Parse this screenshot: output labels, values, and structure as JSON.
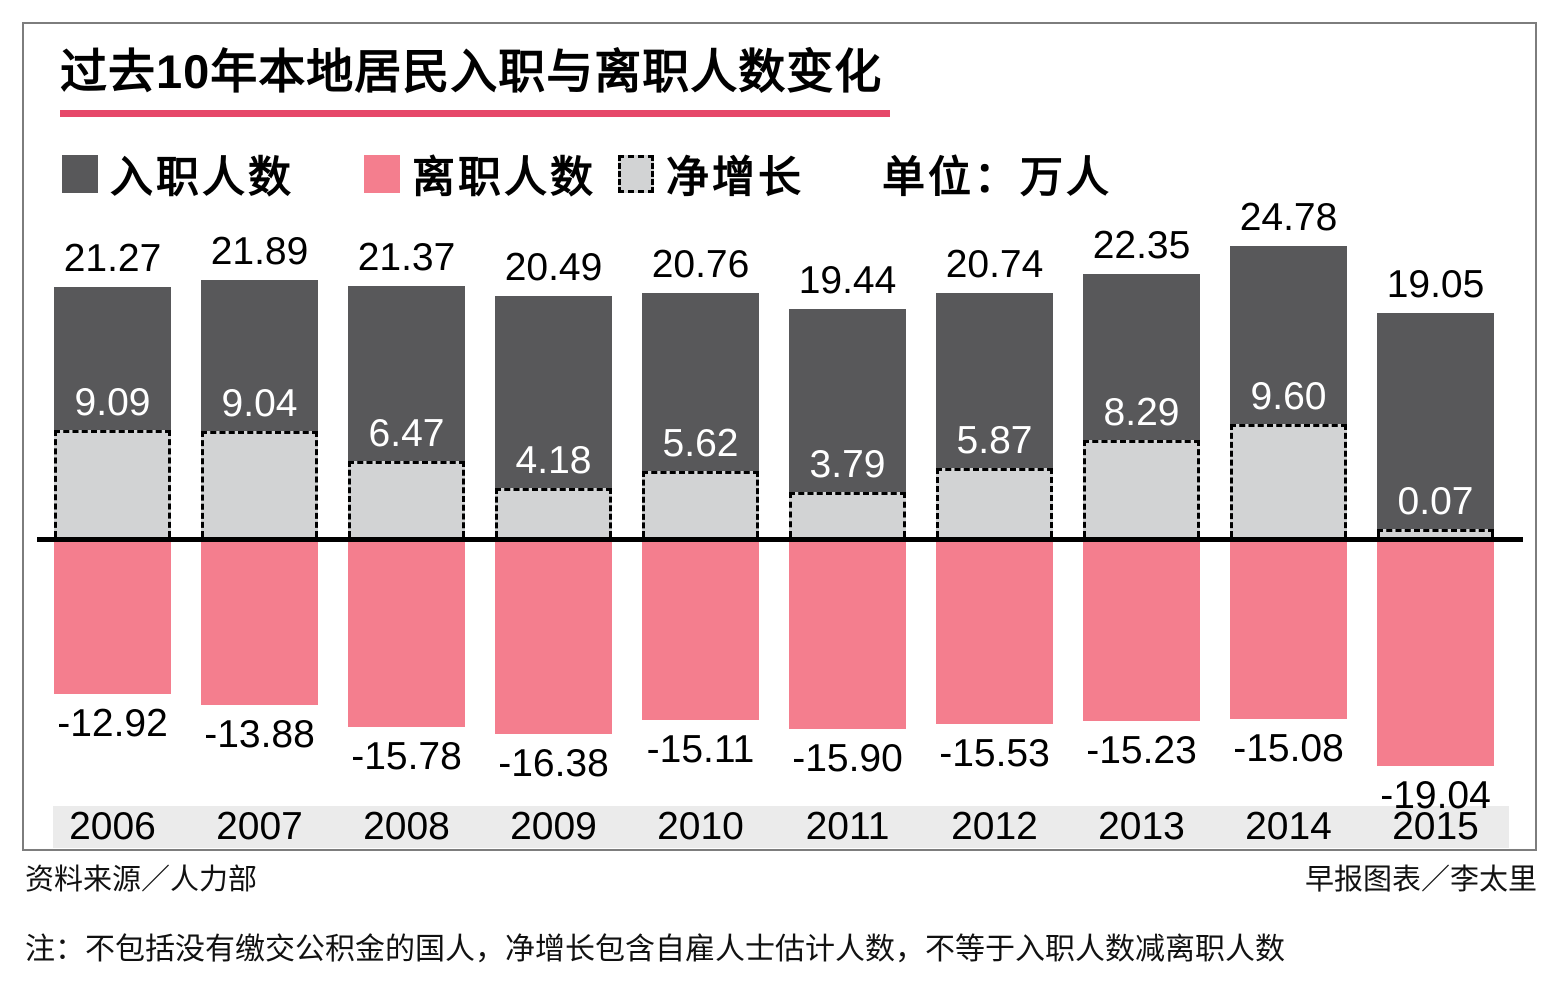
{
  "title": "过去10年本地居民入职与离职人数变化",
  "legend": {
    "hires": "入职人数",
    "separations": "离职人数",
    "net": "净增长",
    "unit": "单位：万人"
  },
  "footer": {
    "source": "资料来源／人力部",
    "credit": "早报图表／李太里",
    "note": "注：不包括没有缴交公积金的国人，净增长包含自雇人士估计人数，不等于入职人数减离职人数"
  },
  "colors": {
    "hires_bar": "#58585A",
    "separations_bar": "#F47E8E",
    "net_bar": "#D2D3D4",
    "accent_underline": "#E64869",
    "year_band": "#EBEBEB",
    "zero_axis": "#000000"
  },
  "chart_data": {
    "type": "bar",
    "categories": [
      "2006",
      "2007",
      "2008",
      "2009",
      "2010",
      "2011",
      "2012",
      "2013",
      "2014",
      "2015"
    ],
    "series": [
      {
        "name": "入职人数",
        "values": [
          21.27,
          21.89,
          21.37,
          20.49,
          20.76,
          19.44,
          20.74,
          22.35,
          24.78,
          19.05
        ]
      },
      {
        "name": "净增长",
        "values": [
          9.09,
          9.04,
          6.47,
          4.18,
          5.62,
          3.79,
          5.87,
          8.29,
          9.6,
          0.07
        ]
      },
      {
        "name": "离职人数",
        "values": [
          -12.92,
          -13.88,
          -15.78,
          -16.38,
          -15.11,
          -15.9,
          -15.53,
          -15.23,
          -15.08,
          -19.04
        ]
      }
    ],
    "unit": "万人",
    "baseline": 0,
    "value_label_decimals": 2,
    "legend_position": "top",
    "grid": false
  }
}
